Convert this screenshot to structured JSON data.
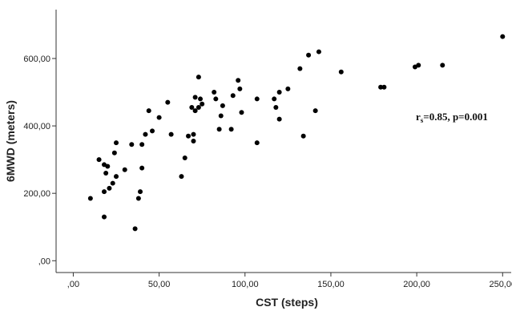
{
  "chart_data": {
    "type": "scatter",
    "xlabel": "CST (steps)",
    "ylabel": "6MWD (meters)",
    "x_ticks": [
      {
        "value": 0,
        "label": ",00"
      },
      {
        "value": 50,
        "label": "50,00"
      },
      {
        "value": 100,
        "label": "100,00"
      },
      {
        "value": 150,
        "label": "150,00"
      },
      {
        "value": 200,
        "label": "200,00"
      },
      {
        "value": 250,
        "label": "250,00"
      }
    ],
    "y_ticks": [
      {
        "value": 0,
        "label": ",00"
      },
      {
        "value": 200,
        "label": "200,00"
      },
      {
        "value": 400,
        "label": "400,00"
      },
      {
        "value": 600,
        "label": "600,00"
      }
    ],
    "xlim": [
      -10,
      255
    ],
    "ylim": [
      -35,
      745
    ],
    "grid": false,
    "annotation": {
      "r_symbol": "r",
      "r_subscript": "s",
      "text": "=0.85, p=0.001"
    },
    "points": [
      [
        10,
        185
      ],
      [
        15,
        300
      ],
      [
        18,
        130
      ],
      [
        18,
        205
      ],
      [
        18,
        285
      ],
      [
        19,
        260
      ],
      [
        20,
        280
      ],
      [
        21,
        215
      ],
      [
        23,
        230
      ],
      [
        24,
        320
      ],
      [
        25,
        250
      ],
      [
        25,
        350
      ],
      [
        30,
        270
      ],
      [
        34,
        345
      ],
      [
        36,
        95
      ],
      [
        38,
        185
      ],
      [
        39,
        205
      ],
      [
        40,
        275
      ],
      [
        40,
        345
      ],
      [
        42,
        375
      ],
      [
        44,
        445
      ],
      [
        46,
        385
      ],
      [
        50,
        425
      ],
      [
        55,
        470
      ],
      [
        57,
        375
      ],
      [
        63,
        250
      ],
      [
        65,
        305
      ],
      [
        67,
        370
      ],
      [
        69,
        455
      ],
      [
        70,
        355
      ],
      [
        70,
        375
      ],
      [
        71,
        445
      ],
      [
        71,
        485
      ],
      [
        73,
        545
      ],
      [
        73,
        455
      ],
      [
        74,
        480
      ],
      [
        75,
        465
      ],
      [
        82,
        500
      ],
      [
        83,
        480
      ],
      [
        85,
        390
      ],
      [
        86,
        430
      ],
      [
        87,
        460
      ],
      [
        92,
        390
      ],
      [
        93,
        490
      ],
      [
        96,
        535
      ],
      [
        97,
        510
      ],
      [
        98,
        440
      ],
      [
        107,
        480
      ],
      [
        107,
        350
      ],
      [
        117,
        480
      ],
      [
        118,
        455
      ],
      [
        120,
        500
      ],
      [
        120,
        420
      ],
      [
        125,
        510
      ],
      [
        132,
        570
      ],
      [
        134,
        370
      ],
      [
        137,
        610
      ],
      [
        141,
        445
      ],
      [
        143,
        620
      ],
      [
        156,
        560
      ],
      [
        179,
        515
      ],
      [
        181,
        515
      ],
      [
        199,
        575
      ],
      [
        201,
        580
      ],
      [
        215,
        580
      ],
      [
        250,
        665
      ]
    ]
  }
}
